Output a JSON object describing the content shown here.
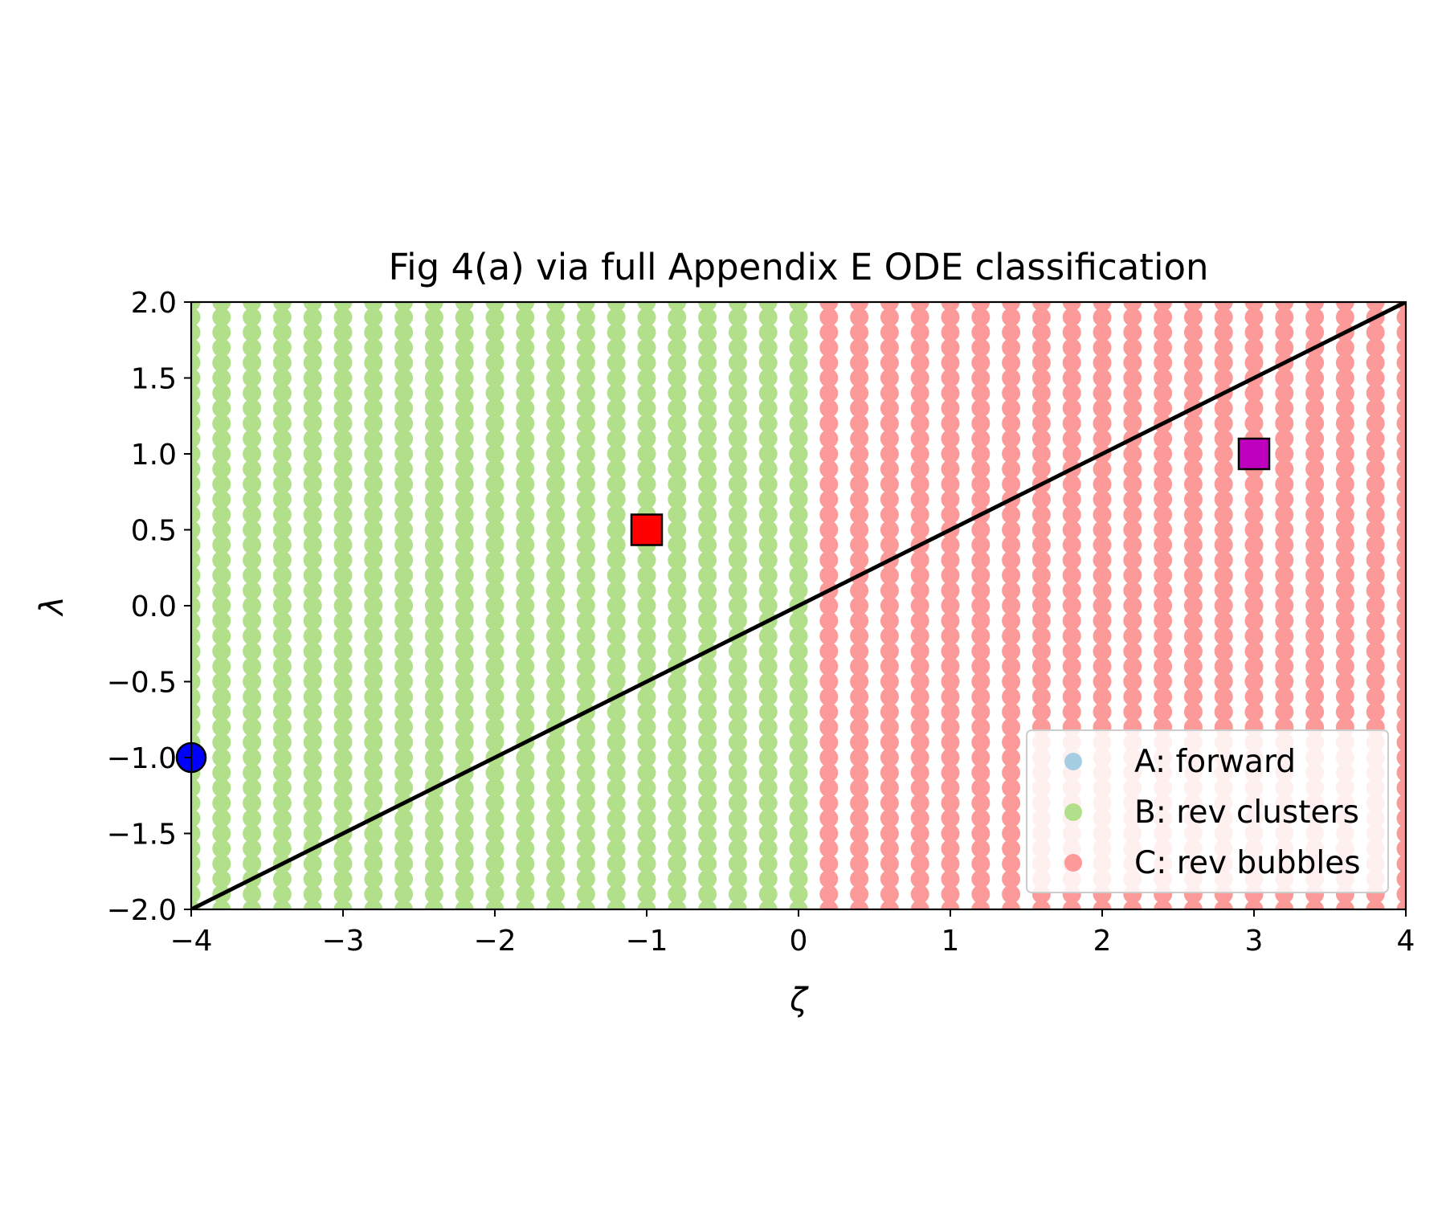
{
  "chart_data": {
    "type": "scatter",
    "title": "Fig 4(a) via full Appendix E ODE classification",
    "xlabel": "ζ",
    "ylabel": "λ",
    "xlim": [
      -4,
      4
    ],
    "ylim": [
      -2,
      2
    ],
    "xticks": [
      -4,
      -3,
      -2,
      -1,
      0,
      1,
      2,
      3,
      4
    ],
    "xtick_labels": [
      "−4",
      "−3",
      "−2",
      "−1",
      "0",
      "1",
      "2",
      "3",
      "4"
    ],
    "yticks": [
      2.0,
      1.5,
      1.0,
      0.5,
      0.0,
      -0.5,
      -1.0,
      -1.5,
      -2.0
    ],
    "ytick_labels": [
      "2.0",
      "1.5",
      "1.0",
      "0.5",
      "0.0",
      "−0.5",
      "−1.0",
      "−1.5",
      "−2.0"
    ],
    "grid": false,
    "legend_position": "lower-right",
    "sampling_grid": {
      "zeta_min": -4.0,
      "zeta_max": 4.0,
      "zeta_step": 0.2,
      "lambda_min": -2.0,
      "lambda_max": 2.0,
      "lambda_step": 0.1
    },
    "series": [
      {
        "name": "A: forward",
        "color": "#a6cee3",
        "region": "none visible",
        "zeta_values": []
      },
      {
        "name": "B: rev clusters",
        "color": "#b2df8a",
        "region": "zeta <= 0",
        "zeta_values": [
          -4.0,
          -3.8,
          -3.6,
          -3.4,
          -3.2,
          -3.0,
          -2.8,
          -2.6,
          -2.4,
          -2.2,
          -2.0,
          -1.8,
          -1.6,
          -1.4,
          -1.2,
          -1.0,
          -0.8,
          -0.6,
          -0.4,
          -0.2,
          0.0
        ]
      },
      {
        "name": "C: rev bubbles",
        "color": "#fb9a99",
        "region": "zeta > 0",
        "zeta_values": [
          0.2,
          0.4,
          0.6,
          0.8,
          1.0,
          1.2,
          1.4,
          1.6,
          1.8,
          2.0,
          2.2,
          2.4,
          2.6,
          2.8,
          3.0,
          3.2,
          3.4,
          3.6,
          3.8,
          4.0
        ]
      }
    ],
    "line": {
      "name": "lambda = zeta / 2",
      "color": "#000000",
      "points": [
        [
          -4,
          -2
        ],
        [
          4,
          2
        ]
      ]
    },
    "markers": [
      {
        "name": "blue-circle",
        "shape": "circle",
        "color": "#0000ff",
        "x": -4,
        "y": -1
      },
      {
        "name": "red-square",
        "shape": "square",
        "color": "#ff0000",
        "x": -1,
        "y": 0.5
      },
      {
        "name": "magenta-square",
        "shape": "square",
        "color": "#bf00bf",
        "x": 3,
        "y": 1
      }
    ]
  }
}
